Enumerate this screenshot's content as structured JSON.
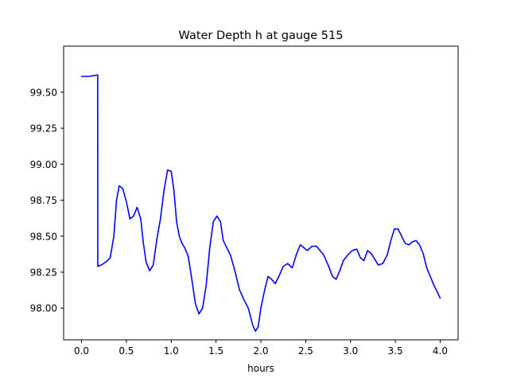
{
  "chart_data": {
    "type": "line",
    "title": "Water Depth h at gauge 515",
    "xlabel": "hours",
    "ylabel": "",
    "xlim": [
      -0.2,
      4.2
    ],
    "ylim": [
      97.78,
      99.82
    ],
    "xticks": [
      0.0,
      0.5,
      1.0,
      1.5,
      2.0,
      2.5,
      3.0,
      3.5,
      4.0
    ],
    "xtick_labels": [
      "0.0",
      "0.5",
      "1.0",
      "1.5",
      "2.0",
      "2.5",
      "3.0",
      "3.5",
      "4.0"
    ],
    "yticks": [
      98.0,
      98.25,
      98.5,
      98.75,
      99.0,
      99.25,
      99.5
    ],
    "ytick_labels": [
      "98.00",
      "98.25",
      "98.50",
      "98.75",
      "99.00",
      "99.25",
      "99.50"
    ],
    "grid": false,
    "series": [
      {
        "color": "#0000ff",
        "x": [
          0.0,
          0.08,
          0.18,
          0.181,
          0.22,
          0.27,
          0.32,
          0.36,
          0.39,
          0.42,
          0.46,
          0.5,
          0.54,
          0.58,
          0.62,
          0.66,
          0.69,
          0.72,
          0.76,
          0.8,
          0.84,
          0.88,
          0.92,
          0.96,
          1.0,
          1.03,
          1.06,
          1.09,
          1.12,
          1.15,
          1.19,
          1.23,
          1.27,
          1.31,
          1.35,
          1.39,
          1.43,
          1.47,
          1.51,
          1.55,
          1.58,
          1.62,
          1.66,
          1.71,
          1.76,
          1.81,
          1.86,
          1.91,
          1.94,
          1.97,
          2.0,
          2.04,
          2.08,
          2.12,
          2.16,
          2.2,
          2.25,
          2.3,
          2.35,
          2.4,
          2.44,
          2.48,
          2.52,
          2.57,
          2.62,
          2.66,
          2.7,
          2.75,
          2.8,
          2.84,
          2.88,
          2.92,
          2.97,
          3.02,
          3.07,
          3.11,
          3.15,
          3.19,
          3.23,
          3.27,
          3.31,
          3.36,
          3.41,
          3.45,
          3.49,
          3.53,
          3.57,
          3.61,
          3.65,
          3.69,
          3.73,
          3.77,
          3.81,
          3.85,
          3.89,
          3.93,
          3.97,
          4.0
        ],
        "y": [
          99.61,
          99.61,
          99.62,
          98.29,
          98.3,
          98.32,
          98.35,
          98.5,
          98.75,
          98.85,
          98.83,
          98.74,
          98.62,
          98.64,
          98.7,
          98.62,
          98.45,
          98.32,
          98.26,
          98.3,
          98.48,
          98.62,
          98.82,
          98.96,
          98.95,
          98.82,
          98.6,
          98.5,
          98.45,
          98.42,
          98.36,
          98.2,
          98.03,
          97.96,
          98.0,
          98.16,
          98.42,
          98.6,
          98.64,
          98.6,
          98.47,
          98.42,
          98.37,
          98.26,
          98.13,
          98.06,
          98.0,
          97.88,
          97.84,
          97.87,
          98.0,
          98.12,
          98.22,
          98.2,
          98.17,
          98.22,
          98.29,
          98.31,
          98.28,
          98.38,
          98.44,
          98.42,
          98.4,
          98.43,
          98.43,
          98.4,
          98.37,
          98.3,
          98.22,
          98.2,
          98.26,
          98.33,
          98.37,
          98.4,
          98.41,
          98.35,
          98.33,
          98.4,
          98.38,
          98.34,
          98.3,
          98.31,
          98.37,
          98.47,
          98.55,
          98.55,
          98.5,
          98.45,
          98.44,
          98.46,
          98.47,
          98.44,
          98.38,
          98.28,
          98.22,
          98.16,
          98.11,
          98.07
        ]
      }
    ]
  }
}
